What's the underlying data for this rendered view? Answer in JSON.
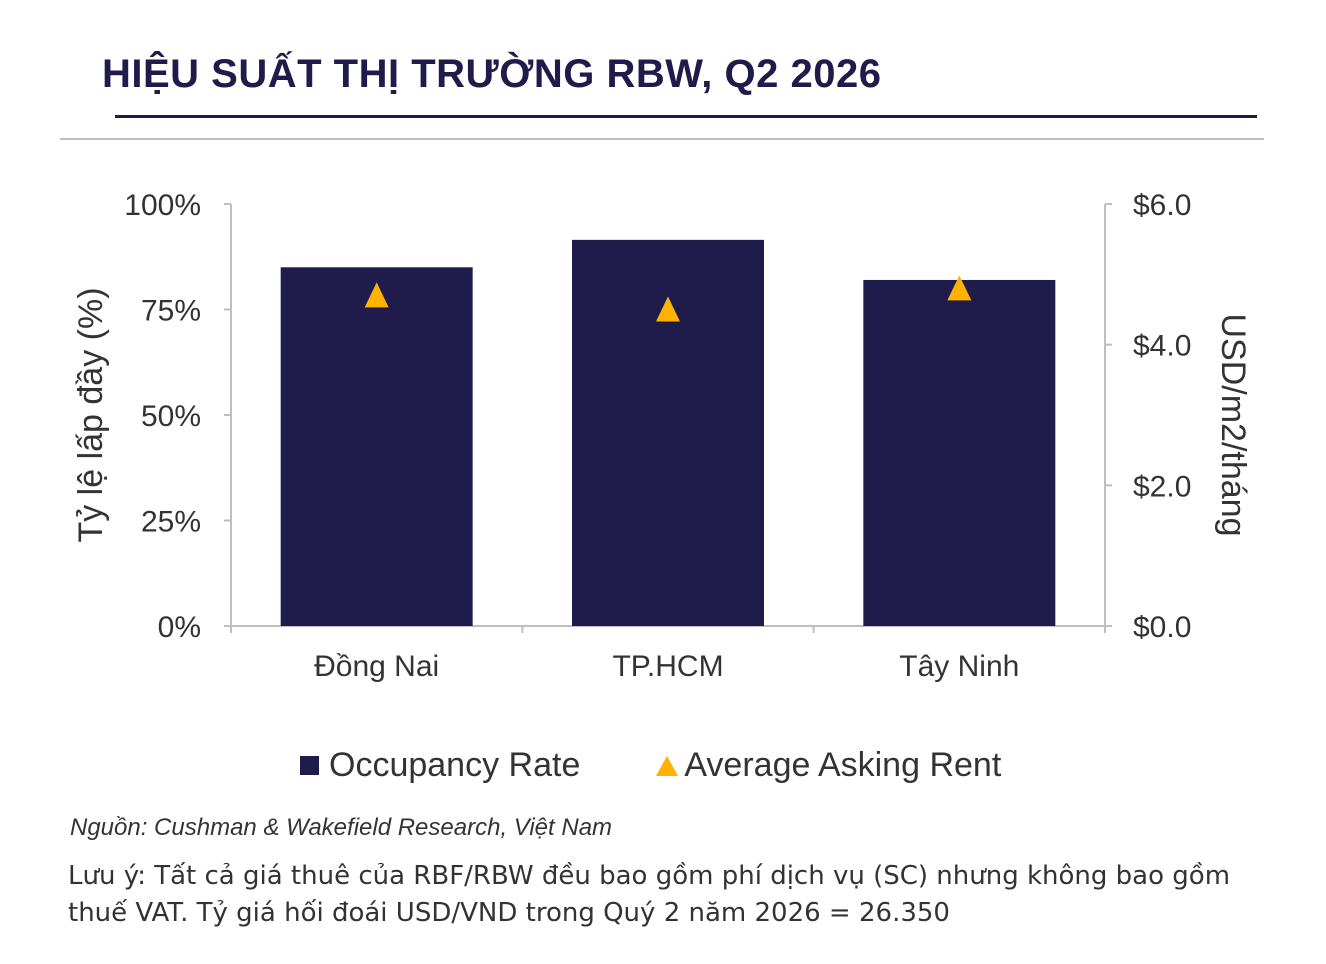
{
  "chart_data": {
    "type": "bar",
    "title": "HIỆU SUẤT THỊ TRƯỜNG RBW, Q2 2026",
    "categories": [
      "Đồng Nai",
      "TP.HCM",
      "Tây Ninh"
    ],
    "series": [
      {
        "name": "Occupancy Rate",
        "type": "bar",
        "axis": "left",
        "values": [
          85,
          91.5,
          82
        ]
      },
      {
        "name": "Average Asking Rent",
        "type": "scatter",
        "marker": "triangle",
        "axis": "right",
        "values": [
          4.7,
          4.5,
          4.8
        ]
      }
    ],
    "ylabel": "Tỷ lệ lấp đầy (%)",
    "ylabel_right": "USD/m2/tháng",
    "ylim": [
      0,
      100
    ],
    "ylim_right": [
      0,
      6
    ],
    "yticks": [
      "0%",
      "25%",
      "50%",
      "75%",
      "100%"
    ],
    "yticks_right": [
      "$0.0",
      "$2.0",
      "$4.0",
      "$6.0"
    ],
    "grid": false,
    "legend_position": "bottom",
    "colors": {
      "bar": "#1f1c4c",
      "marker": "#ffb300",
      "axis": "#bfbfbf",
      "title": "#1f1c4c"
    }
  },
  "source": "Nguồn: Cushman & Wakefield Research, Việt Nam",
  "note": "Lưu ý: Tất cả giá thuê của RBF/RBW đều bao gồm phí dịch vụ (SC) nhưng không bao gồm thuế VAT. Tỷ giá hối đoái USD/VND trong Quý 2 năm 2026 = 26.350"
}
